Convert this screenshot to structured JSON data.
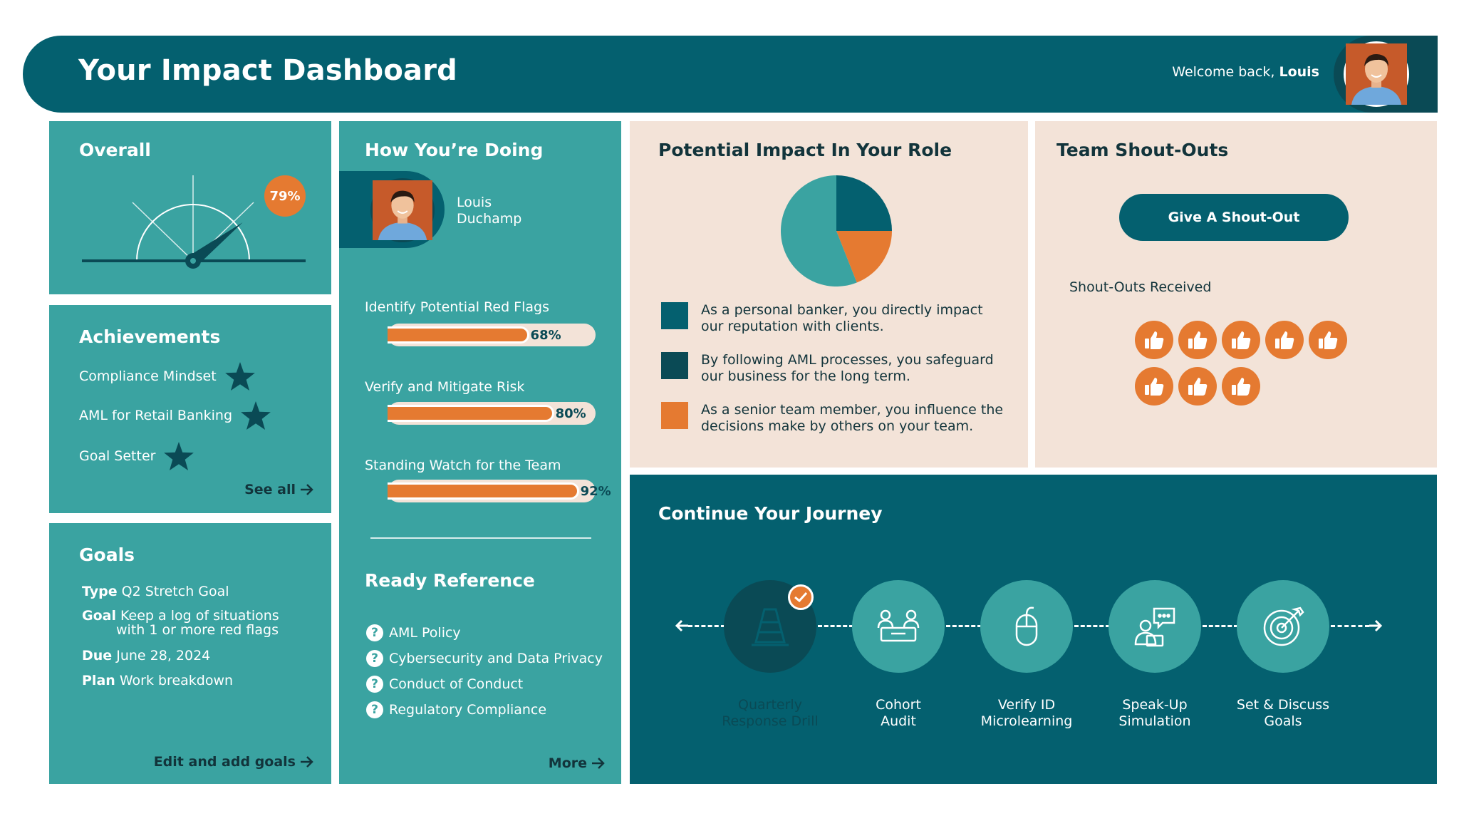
{
  "header": {
    "title": "Your Impact Dashboard",
    "welcome_prefix": "Welcome back,",
    "user_first_name": "Louis"
  },
  "overall": {
    "title": "Overall",
    "score_label": "79%",
    "score": 0.79
  },
  "achievements": {
    "title": "Achievements",
    "items": [
      {
        "label": "Compliance Mindset",
        "icon": "star-icon"
      },
      {
        "label": "AML for Retail Banking",
        "icon": "star-icon"
      },
      {
        "label": "Goal Setter",
        "icon": "star-icon"
      }
    ],
    "see_all": "See all"
  },
  "goals": {
    "title": "Goals",
    "type_key": "Type",
    "type_value": "Q2 Stretch Goal",
    "goal_key": "Goal",
    "goal_value_1": "Keep a log of situations",
    "goal_value_2": "with 1 or more red flags",
    "due_key": "Due",
    "due_value": "June 28, 2024",
    "plan_key": "Plan",
    "plan_value": "Work breakdown",
    "edit_link": "Edit and add goals"
  },
  "progress": {
    "title": "How You’re Doing",
    "person_first": "Louis",
    "person_last": "Duchamp",
    "bars": [
      {
        "label": "Identify Potential Red Flags",
        "percent": 68,
        "percent_label": "68%"
      },
      {
        "label": "Verify and Mitigate Risk",
        "percent": 80,
        "percent_label": "80%"
      },
      {
        "label": "Standing Watch for the Team",
        "percent": 92,
        "percent_label": "92%"
      }
    ]
  },
  "reference": {
    "title": "Ready Reference",
    "items": [
      "AML Policy",
      "Cybersecurity and Data Privacy",
      "Conduct of Conduct",
      "Regulatory Compliance"
    ],
    "more": "More"
  },
  "impact": {
    "title": "Potential Impact In Your Role",
    "legend": [
      {
        "color": "#04606f",
        "line1": "As a personal banker, you directly impact",
        "line2": "our reputation with clients."
      },
      {
        "color": "#0a4a55",
        "line1": "By following AML processes, you safeguard",
        "line2": "our business for the long term."
      },
      {
        "color": "#e57a31",
        "line1": "As a senior team member, you influence the",
        "line2": "decisions make by others on your team."
      }
    ]
  },
  "chart_data": {
    "type": "pie",
    "slices": [
      {
        "value": 0.25,
        "color": "#04606f"
      },
      {
        "value": 0.19,
        "color": "#e57a31"
      },
      {
        "value": 0.56,
        "color": "#3aa3a1"
      }
    ]
  },
  "shoutouts": {
    "title": "Team Shout-Outs",
    "button": "Give A Shout-Out",
    "received_label": "Shout-Outs Received",
    "count": 8
  },
  "journey": {
    "title": "Continue Your Journey",
    "steps": [
      {
        "line1": "Quarterly",
        "line2": "Response Drill",
        "icon": "traffic-cone-icon",
        "completed": true
      },
      {
        "line1": "Cohort",
        "line2": "Audit",
        "icon": "meeting-table-icon",
        "completed": false
      },
      {
        "line1": "Verify ID",
        "line2": "Microlearning",
        "icon": "mouse-icon",
        "completed": false
      },
      {
        "line1": "Speak-Up",
        "line2": "Simulation",
        "icon": "chat-user-icon",
        "completed": false
      },
      {
        "line1": "Set & Discuss",
        "line2": "Goals",
        "icon": "target-icon",
        "completed": false
      }
    ]
  },
  "colors": {
    "dark_teal": "#04606f",
    "deep_teal": "#0a4a55",
    "teal": "#3aa3a1",
    "peach": "#f3e3d8",
    "orange": "#e57a31"
  }
}
